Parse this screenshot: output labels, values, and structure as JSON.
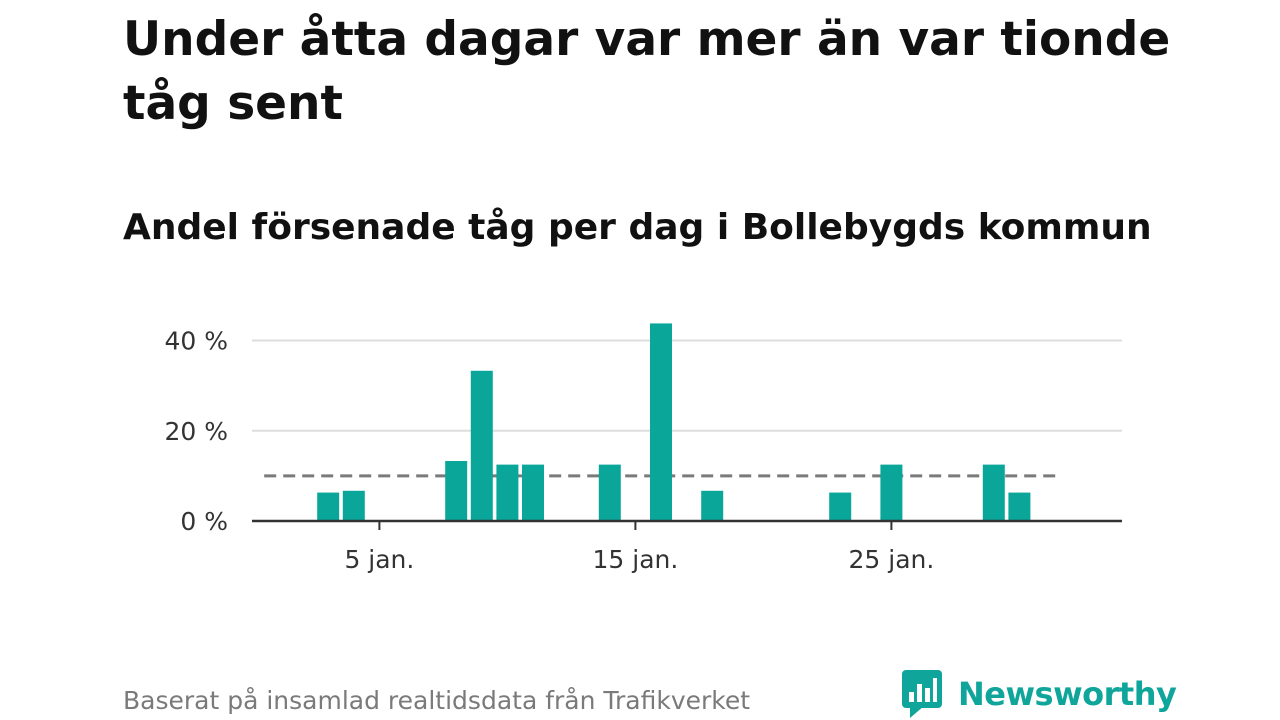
{
  "title": "Under åtta dagar var mer än var tionde tåg sent",
  "subtitle": "Andel försenade tåg per dag i Bollebygds kommun",
  "source": "Baserat på insamlad realtidsdata från Trafikverket",
  "brand": "Newsworthy",
  "colors": {
    "bar": "#0aa69a",
    "reference_line": "#7a7a7a",
    "grid": "#dddddd",
    "axis": "#333333",
    "brand": "#0fa59a"
  },
  "icons": {
    "brand_logo": "newsworthy-logo-icon"
  },
  "chart_data": {
    "type": "bar",
    "x_unit": "day of January",
    "x": [
      3,
      4,
      8,
      9,
      10,
      11,
      14,
      16,
      18,
      23,
      25,
      29,
      30
    ],
    "values": [
      6.3,
      6.7,
      13.3,
      33.3,
      12.5,
      12.5,
      12.5,
      43.8,
      6.7,
      6.3,
      12.5,
      12.5,
      6.3
    ],
    "xlim": [
      0,
      35
    ],
    "ylim": [
      0,
      45
    ],
    "y_ticks": [
      {
        "value": 0,
        "label": "0 %"
      },
      {
        "value": 20,
        "label": "20 %"
      },
      {
        "value": 40,
        "label": "40 %"
      }
    ],
    "x_ticks": [
      {
        "value": 5,
        "label": "5 jan."
      },
      {
        "value": 15,
        "label": "15 jan."
      },
      {
        "value": 25,
        "label": "25 jan."
      }
    ],
    "reference_line": {
      "value": 10,
      "style": "dashed",
      "from": 0.5,
      "to": 31.5
    },
    "grid": true,
    "legend": "none"
  }
}
